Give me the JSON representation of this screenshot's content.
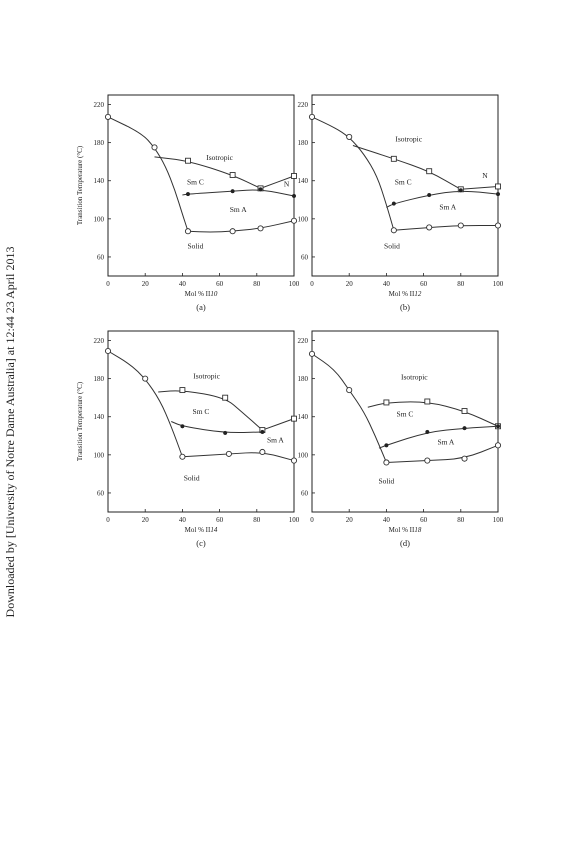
{
  "watermark": "Downloaded by [University of Notre Dame Australia] at 12:44 23 April 2013",
  "chart_data": [
    {
      "type": "scatter",
      "panel": "(a)",
      "xlabel": "Mol % II",
      "xlabel_suffix": "10",
      "ylabel": "Transition Temperature (°C)",
      "xlim": [
        0,
        100
      ],
      "ylim": [
        40,
        230
      ],
      "xticks": [
        0,
        20,
        40,
        60,
        80,
        100
      ],
      "yticks": [
        60,
        100,
        140,
        180,
        220
      ],
      "phase_labels": [
        {
          "text": "Isotropic",
          "x": 60,
          "y": 162
        },
        {
          "text": "Sm C",
          "x": 47,
          "y": 136
        },
        {
          "text": "Sm A",
          "x": 70,
          "y": 107
        },
        {
          "text": "N",
          "x": 96,
          "y": 134
        },
        {
          "text": "Solid",
          "x": 47,
          "y": 69
        }
      ],
      "series": [
        {
          "marker": "open-circle",
          "points": [
            [
              0,
              207
            ],
            [
              25,
              175
            ],
            [
              43,
              87
            ],
            [
              67,
              87
            ],
            [
              82,
              90
            ],
            [
              100,
              98
            ]
          ]
        },
        {
          "marker": "open-square",
          "points": [
            [
              43,
              161
            ],
            [
              67,
              146
            ],
            [
              82,
              132
            ],
            [
              100,
              145
            ]
          ]
        },
        {
          "marker": "filled",
          "points": [
            [
              43,
              126
            ],
            [
              67,
              129
            ],
            [
              82,
              131
            ],
            [
              100,
              124
            ]
          ]
        }
      ],
      "curves": [
        [
          [
            0,
            207
          ],
          [
            18,
            190
          ],
          [
            25,
            175
          ],
          [
            31,
            155
          ],
          [
            36,
            130
          ],
          [
            40,
            105
          ],
          [
            43,
            87
          ]
        ],
        [
          [
            43,
            87
          ],
          [
            55,
            86
          ],
          [
            67,
            87
          ],
          [
            82,
            90
          ],
          [
            100,
            98
          ]
        ],
        [
          [
            25,
            165
          ],
          [
            43,
            161
          ],
          [
            67,
            146
          ],
          [
            82,
            132
          ]
        ],
        [
          [
            82,
            132
          ],
          [
            100,
            145
          ]
        ],
        [
          [
            40,
            125
          ],
          [
            43,
            126
          ],
          [
            67,
            129
          ],
          [
            82,
            131
          ],
          [
            100,
            124
          ]
        ]
      ]
    },
    {
      "type": "scatter",
      "panel": "(b)",
      "xlabel": "Mol % II",
      "xlabel_suffix": "12",
      "ylabel": "",
      "xlim": [
        0,
        100
      ],
      "ylim": [
        40,
        230
      ],
      "xticks": [
        0,
        20,
        40,
        60,
        80,
        100
      ],
      "yticks": [
        60,
        100,
        140,
        180,
        220
      ],
      "phase_labels": [
        {
          "text": "Isotropic",
          "x": 52,
          "y": 181
        },
        {
          "text": "Sm C",
          "x": 49,
          "y": 136
        },
        {
          "text": "Sm A",
          "x": 73,
          "y": 110
        },
        {
          "text": "N",
          "x": 93,
          "y": 143
        },
        {
          "text": "Solid",
          "x": 43,
          "y": 69
        }
      ],
      "series": [
        {
          "marker": "open-circle",
          "points": [
            [
              0,
              207
            ],
            [
              20,
              186
            ],
            [
              44,
              88
            ],
            [
              63,
              91
            ],
            [
              80,
              93
            ],
            [
              100,
              93
            ]
          ]
        },
        {
          "marker": "open-square",
          "points": [
            [
              44,
              163
            ],
            [
              63,
              150
            ],
            [
              80,
              131
            ],
            [
              100,
              134
            ]
          ]
        },
        {
          "marker": "filled",
          "points": [
            [
              44,
              116
            ],
            [
              63,
              125
            ],
            [
              80,
              130
            ],
            [
              100,
              126
            ]
          ]
        }
      ],
      "curves": [
        [
          [
            0,
            207
          ],
          [
            12,
            196
          ],
          [
            20,
            186
          ],
          [
            28,
            168
          ],
          [
            35,
            145
          ],
          [
            40,
            115
          ],
          [
            44,
            88
          ]
        ],
        [
          [
            44,
            88
          ],
          [
            63,
            91
          ],
          [
            80,
            93
          ],
          [
            100,
            93
          ]
        ],
        [
          [
            22,
            177
          ],
          [
            44,
            163
          ],
          [
            63,
            150
          ],
          [
            80,
            131
          ]
        ],
        [
          [
            80,
            131
          ],
          [
            100,
            134
          ]
        ],
        [
          [
            40,
            112
          ],
          [
            44,
            116
          ],
          [
            63,
            125
          ],
          [
            80,
            130
          ],
          [
            100,
            126
          ]
        ]
      ]
    },
    {
      "type": "scatter",
      "panel": "(c)",
      "xlabel": "Mol % II",
      "xlabel_suffix": "14",
      "ylabel": "Transition Temperature (°C)",
      "xlim": [
        0,
        100
      ],
      "ylim": [
        40,
        230
      ],
      "xticks": [
        0,
        20,
        40,
        60,
        80,
        100
      ],
      "yticks": [
        60,
        100,
        140,
        180,
        220
      ],
      "phase_labels": [
        {
          "text": "Isotropic",
          "x": 53,
          "y": 180
        },
        {
          "text": "Sm C",
          "x": 50,
          "y": 143
        },
        {
          "text": "Sm A",
          "x": 90,
          "y": 113
        },
        {
          "text": "Solid",
          "x": 45,
          "y": 73
        }
      ],
      "series": [
        {
          "marker": "open-circle",
          "points": [
            [
              0,
              209
            ],
            [
              20,
              180
            ],
            [
              40,
              98
            ],
            [
              65,
              101
            ],
            [
              83,
              103
            ],
            [
              100,
              94
            ]
          ]
        },
        {
          "marker": "open-square",
          "points": [
            [
              40,
              168
            ],
            [
              63,
              160
            ],
            [
              83,
              126
            ],
            [
              100,
              138
            ]
          ]
        },
        {
          "marker": "filled",
          "points": [
            [
              40,
              130
            ],
            [
              63,
              123
            ],
            [
              83,
              124
            ]
          ]
        }
      ],
      "curves": [
        [
          [
            0,
            209
          ],
          [
            12,
            195
          ],
          [
            20,
            180
          ],
          [
            28,
            157
          ],
          [
            34,
            130
          ],
          [
            40,
            98
          ]
        ],
        [
          [
            40,
            98
          ],
          [
            65,
            101
          ],
          [
            83,
            103
          ],
          [
            100,
            94
          ]
        ],
        [
          [
            27,
            166
          ],
          [
            40,
            168
          ],
          [
            63,
            160
          ],
          [
            72,
            145
          ],
          [
            83,
            126
          ]
        ],
        [
          [
            83,
            126
          ],
          [
            100,
            138
          ]
        ],
        [
          [
            34,
            135
          ],
          [
            40,
            130
          ],
          [
            63,
            123
          ],
          [
            83,
            124
          ]
        ]
      ]
    },
    {
      "type": "scatter",
      "panel": "(d)",
      "xlabel": "Mol % II",
      "xlabel_suffix": "18",
      "ylabel": "",
      "xlim": [
        0,
        100
      ],
      "ylim": [
        40,
        230
      ],
      "xticks": [
        0,
        20,
        40,
        60,
        80,
        100
      ],
      "yticks": [
        60,
        100,
        140,
        180,
        220
      ],
      "phase_labels": [
        {
          "text": "Isotropic",
          "x": 55,
          "y": 179
        },
        {
          "text": "Sm C",
          "x": 50,
          "y": 140
        },
        {
          "text": "Sm A",
          "x": 72,
          "y": 111
        },
        {
          "text": "Solid",
          "x": 40,
          "y": 70
        }
      ],
      "series": [
        {
          "marker": "open-circle",
          "points": [
            [
              0,
              206
            ],
            [
              20,
              168
            ],
            [
              40,
              92
            ],
            [
              62,
              94
            ],
            [
              82,
              96
            ],
            [
              100,
              110
            ]
          ]
        },
        {
          "marker": "open-square",
          "points": [
            [
              40,
              155
            ],
            [
              62,
              156
            ],
            [
              82,
              146
            ],
            [
              100,
              130
            ]
          ]
        },
        {
          "marker": "filled",
          "points": [
            [
              40,
              110
            ],
            [
              62,
              124
            ],
            [
              82,
              128
            ],
            [
              100,
              130
            ]
          ]
        }
      ],
      "curves": [
        [
          [
            0,
            206
          ],
          [
            12,
            190
          ],
          [
            20,
            168
          ],
          [
            28,
            145
          ],
          [
            34,
            120
          ],
          [
            40,
            92
          ]
        ],
        [
          [
            40,
            92
          ],
          [
            62,
            94
          ],
          [
            82,
            96
          ],
          [
            100,
            110
          ]
        ],
        [
          [
            30,
            150
          ],
          [
            40,
            155
          ],
          [
            62,
            156
          ],
          [
            82,
            146
          ],
          [
            100,
            130
          ]
        ],
        [
          [
            36,
            107
          ],
          [
            40,
            110
          ],
          [
            62,
            124
          ],
          [
            82,
            128
          ],
          [
            100,
            130
          ]
        ]
      ]
    }
  ]
}
